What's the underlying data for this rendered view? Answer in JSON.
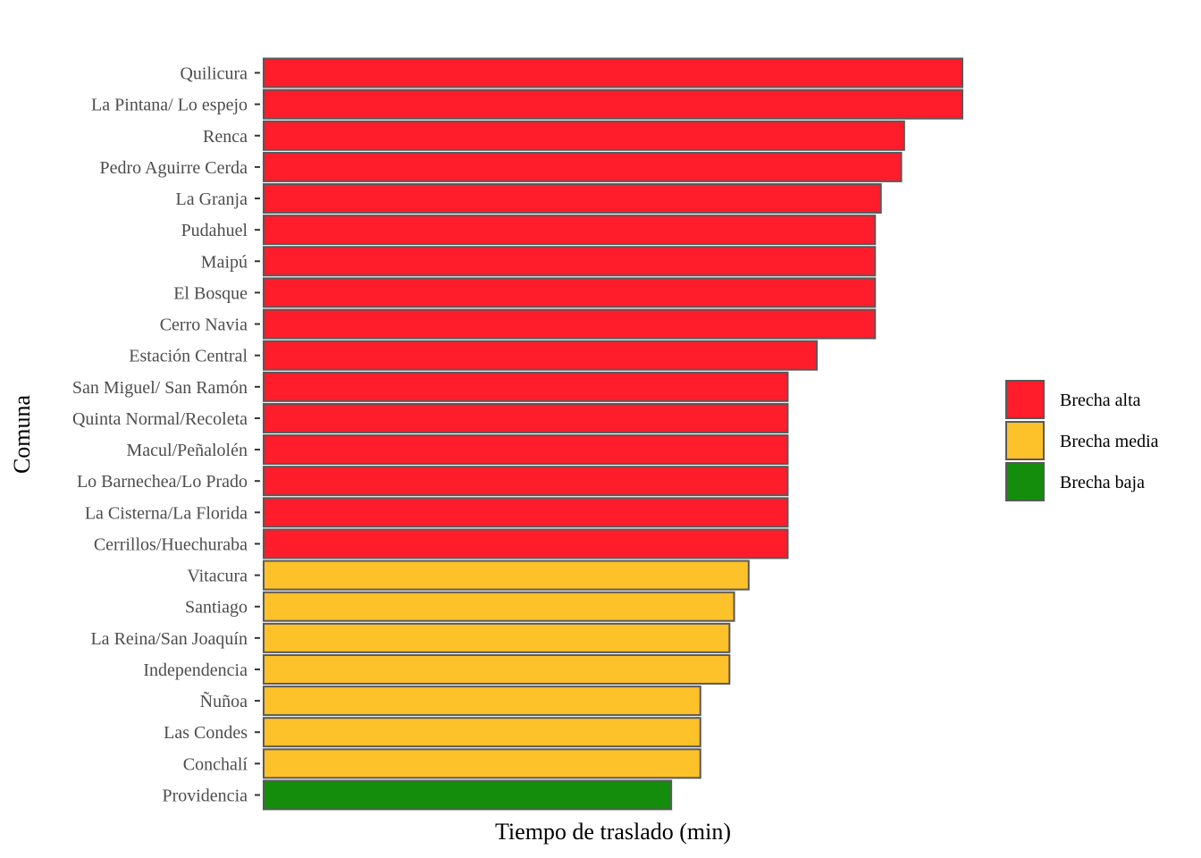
{
  "chart_data": {
    "type": "bar",
    "orientation": "horizontal",
    "title": "",
    "xlabel": "Tiempo de traslado (min)",
    "ylabel": "Comuna",
    "xlim": [
      0,
      120
    ],
    "x_tick_labels_shown": false,
    "grid": false,
    "legend_position": "right",
    "bar_border_color": "#595959",
    "categories": [
      "Quilicura",
      "La Pintana/ Lo espejo",
      "Renca",
      "Pedro Aguirre Cerda",
      "La Granja",
      "Pudahuel",
      "Maipú",
      "El Bosque",
      "Cerro Navia",
      "Estación Central",
      "San Miguel/ San Ramón",
      "Quinta Normal/Recoleta",
      "Macul/Peñalolén",
      "Lo Barnechea/Lo Prado",
      "La Cisterna/La Florida",
      "Cerrillos/Huechuraba",
      "Vitacura",
      "Santiago",
      "La Reina/San Joaquín",
      "Independencia",
      "Ñuñoa",
      "Las Condes",
      "Conchalí",
      "Providencia"
    ],
    "values": [
      120,
      120,
      110,
      109.5,
      106,
      105,
      105,
      105,
      105,
      95,
      90,
      90,
      90,
      90,
      90,
      90,
      83.3,
      80.8,
      80,
      80,
      75,
      75,
      75,
      70
    ],
    "groups": [
      "Brecha alta",
      "Brecha alta",
      "Brecha alta",
      "Brecha alta",
      "Brecha alta",
      "Brecha alta",
      "Brecha alta",
      "Brecha alta",
      "Brecha alta",
      "Brecha alta",
      "Brecha alta",
      "Brecha alta",
      "Brecha alta",
      "Brecha alta",
      "Brecha alta",
      "Brecha alta",
      "Brecha media",
      "Brecha media",
      "Brecha media",
      "Brecha media",
      "Brecha media",
      "Brecha media",
      "Brecha media",
      "Brecha baja"
    ],
    "legend": [
      {
        "name": "Brecha alta",
        "color": "#ff1c2b"
      },
      {
        "name": "Brecha media",
        "color": "#fdc12a"
      },
      {
        "name": "Brecha baja",
        "color": "#138d0b"
      }
    ]
  }
}
